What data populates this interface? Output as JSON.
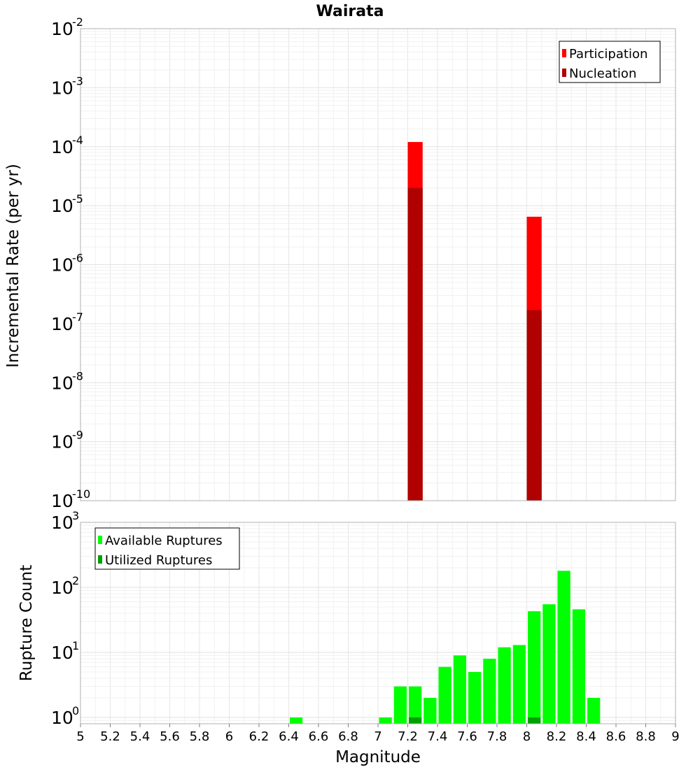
{
  "chart_data": [
    {
      "type": "bar",
      "title": "Wairata",
      "ylabel": "Incremental Rate (per yr)",
      "yscale": "log",
      "ylim": [
        1e-10,
        0.01
      ],
      "xlim": [
        5,
        9
      ],
      "y_tick_exponents": [
        "-10",
        "-9",
        "-8",
        "-7",
        "-6",
        "-5",
        "-4",
        "-3",
        "-2"
      ],
      "y_tick_base": "10",
      "legend": {
        "placement": "top-right",
        "entries": [
          "Participation",
          "Nucleation"
        ]
      },
      "series": [
        {
          "name": "Participation",
          "color": "#ff0000",
          "x": [
            7.25,
            8.05
          ],
          "values": [
            0.00012,
            6.5e-06
          ]
        },
        {
          "name": "Nucleation",
          "color": "#b00000",
          "x": [
            7.25,
            8.05
          ],
          "values": [
            2e-05,
            1.7e-07
          ]
        }
      ],
      "grid": true
    },
    {
      "type": "bar",
      "xlabel": "Magnitude",
      "ylabel": "Rupture Count",
      "yscale": "log",
      "ylim": [
        0.8,
        1000
      ],
      "xlim": [
        5,
        9
      ],
      "y_tick_exponents": [
        "0",
        "1",
        "2",
        "3"
      ],
      "y_tick_base": "10",
      "x_ticks": [
        "5",
        "5.2",
        "5.4",
        "5.6",
        "5.8",
        "6",
        "6.2",
        "6.4",
        "6.6",
        "6.8",
        "7",
        "7.2",
        "7.4",
        "7.6",
        "7.8",
        "8",
        "8.2",
        "8.4",
        "8.6",
        "8.8",
        "9"
      ],
      "legend": {
        "placement": "top-left",
        "entries": [
          "Available Ruptures",
          "Utilized Ruptures"
        ]
      },
      "series": [
        {
          "name": "Available Ruptures",
          "color": "#00ff00",
          "x": [
            6.45,
            7.05,
            7.15,
            7.25,
            7.35,
            7.45,
            7.55,
            7.65,
            7.75,
            7.85,
            7.95,
            8.05,
            8.15,
            8.25,
            8.35,
            8.45
          ],
          "values": [
            1,
            1,
            3,
            3,
            2,
            6,
            9,
            5,
            8,
            12,
            13,
            43,
            55,
            180,
            46,
            2
          ]
        },
        {
          "name": "Utilized Ruptures",
          "color": "#00a000",
          "x": [
            7.25,
            8.05
          ],
          "values": [
            1,
            1
          ]
        }
      ],
      "grid": true
    }
  ]
}
